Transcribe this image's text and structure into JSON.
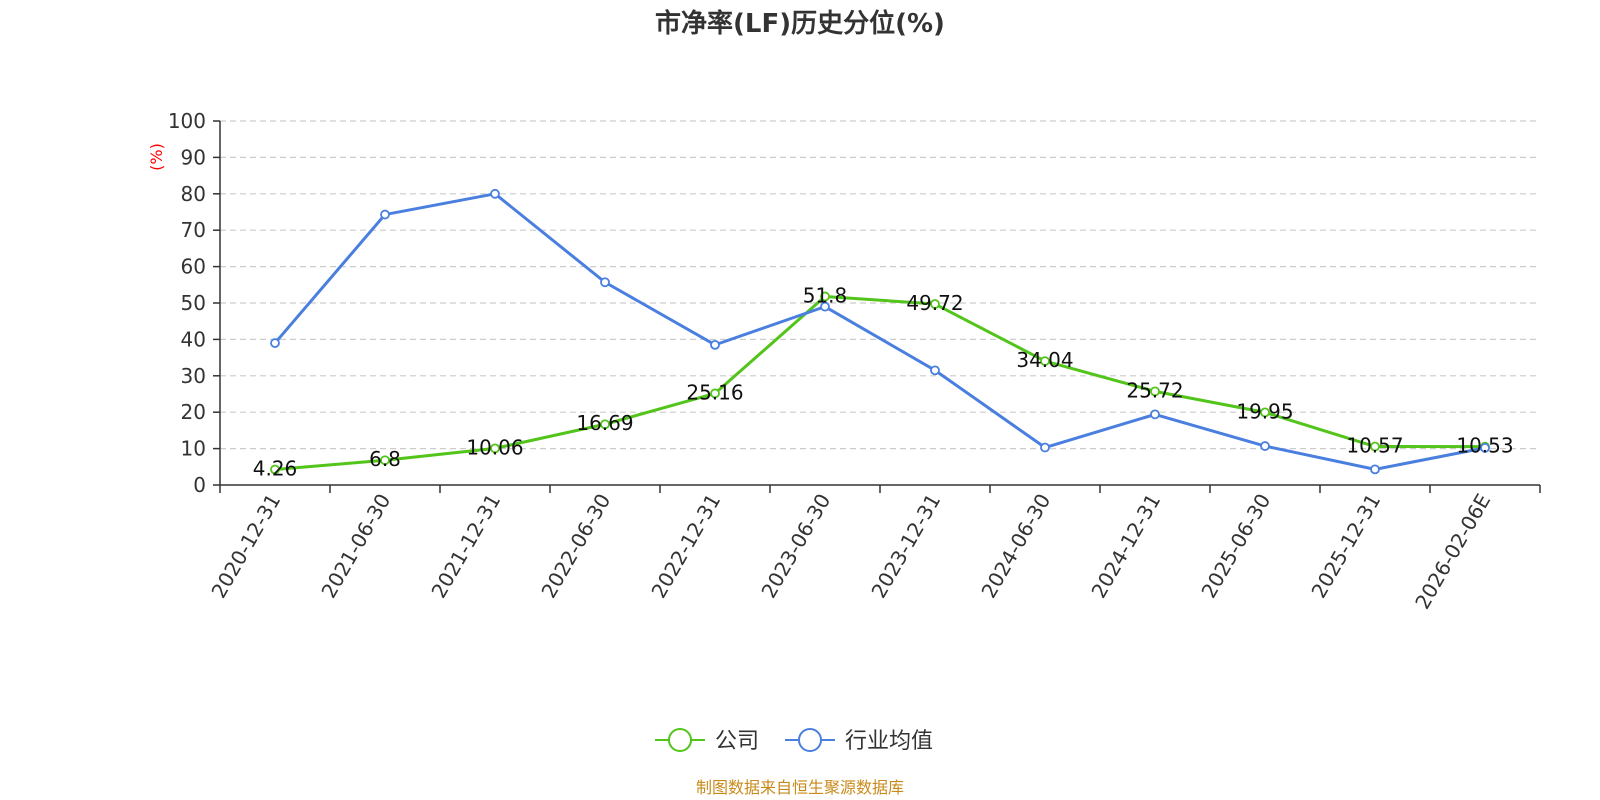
{
  "chart_data": {
    "type": "line",
    "title": "市净率(LF)历史分位(%)",
    "ylabel": "(%)",
    "ylim": [
      0,
      100
    ],
    "yticks": [
      0,
      10,
      20,
      30,
      40,
      50,
      60,
      70,
      80,
      90,
      100
    ],
    "grid": true,
    "legend_position": "bottom",
    "categories": [
      "2020-12-31",
      "2021-06-30",
      "2021-12-31",
      "2022-06-30",
      "2022-12-31",
      "2023-06-30",
      "2023-12-31",
      "2024-06-30",
      "2024-12-31",
      "2025-06-30",
      "2025-12-31",
      "2026-02-06E"
    ],
    "series": [
      {
        "name": "公司",
        "color": "#52c41a",
        "show_labels": true,
        "values": [
          4.26,
          6.8,
          10.06,
          16.69,
          25.16,
          51.8,
          49.72,
          34.04,
          25.72,
          19.95,
          10.57,
          10.53
        ]
      },
      {
        "name": "行业均值",
        "color": "#4a7fe0",
        "show_labels": false,
        "values": [
          39,
          74.3,
          80,
          55.7,
          38.5,
          49,
          31.5,
          10.3,
          19.4,
          10.7,
          4.3,
          10.2
        ]
      }
    ],
    "source": "制图数据来自恒生聚源数据库"
  }
}
